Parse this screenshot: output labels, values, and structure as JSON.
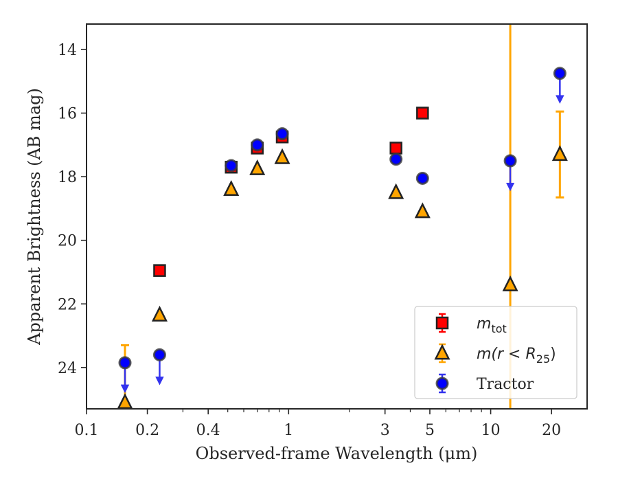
{
  "chart_data": {
    "type": "scatter",
    "xlabel": "Observed-frame Wavelength (μm)",
    "ylabel": "Apparent Brightness (AB mag)",
    "x_scale": "log",
    "xlim": [
      0.1,
      30
    ],
    "ylim": [
      25.3,
      13.2
    ],
    "y_inverted": true,
    "x_ticks": [
      0.1,
      0.2,
      0.4,
      1,
      3,
      5,
      10,
      20
    ],
    "x_tick_labels": [
      "0.1",
      "0.2",
      "0.4",
      "1",
      "3",
      "5",
      "10",
      "20"
    ],
    "y_ticks": [
      14,
      16,
      18,
      20,
      22,
      24
    ],
    "y_tick_labels": [
      "14",
      "16",
      "18",
      "20",
      "22",
      "24"
    ],
    "legend_position": "lower-right",
    "grid": false,
    "series": [
      {
        "name": "m_tot",
        "label_main": "m",
        "label_sub": "tot",
        "marker": "square",
        "color": "#ff0000",
        "edge": "#222222",
        "points": [
          {
            "x": 0.23,
            "y": 20.95
          },
          {
            "x": 0.52,
            "y": 17.7
          },
          {
            "x": 0.7,
            "y": 17.1
          },
          {
            "x": 0.93,
            "y": 16.75
          },
          {
            "x": 3.4,
            "y": 17.1
          },
          {
            "x": 4.6,
            "y": 16.0
          }
        ]
      },
      {
        "name": "m(r<R25)",
        "label_main": "m(r < R",
        "label_sub": "25",
        "label_close": ")",
        "marker": "triangle",
        "color": "#ffa500",
        "edge": "#222222",
        "points": [
          {
            "x": 0.155,
            "y": 25.1,
            "err_lo": 23.3,
            "err_hi": 25.1
          },
          {
            "x": 0.23,
            "y": 22.35
          },
          {
            "x": 0.52,
            "y": 18.4
          },
          {
            "x": 0.7,
            "y": 17.75
          },
          {
            "x": 0.93,
            "y": 17.4
          },
          {
            "x": 3.4,
            "y": 18.5
          },
          {
            "x": 4.6,
            "y": 19.1
          },
          {
            "x": 12.5,
            "y": 21.4,
            "err_lo": 13.2,
            "err_hi": 25.3
          },
          {
            "x": 22.0,
            "y": 17.3,
            "err_lo": 15.95,
            "err_hi": 18.65
          }
        ]
      },
      {
        "name": "Tractor",
        "marker": "circle",
        "color": "#0000ff",
        "edge": "#3a3a3a",
        "points": [
          {
            "x": 0.155,
            "y": 23.85,
            "upper_limit": true
          },
          {
            "x": 0.23,
            "y": 23.6,
            "upper_limit": true
          },
          {
            "x": 0.52,
            "y": 17.65
          },
          {
            "x": 0.7,
            "y": 17.0
          },
          {
            "x": 0.93,
            "y": 16.65
          },
          {
            "x": 3.4,
            "y": 17.45
          },
          {
            "x": 4.6,
            "y": 18.05
          },
          {
            "x": 12.5,
            "y": 17.5,
            "upper_limit": true
          },
          {
            "x": 22.0,
            "y": 14.75,
            "upper_limit": true
          }
        ]
      }
    ]
  }
}
